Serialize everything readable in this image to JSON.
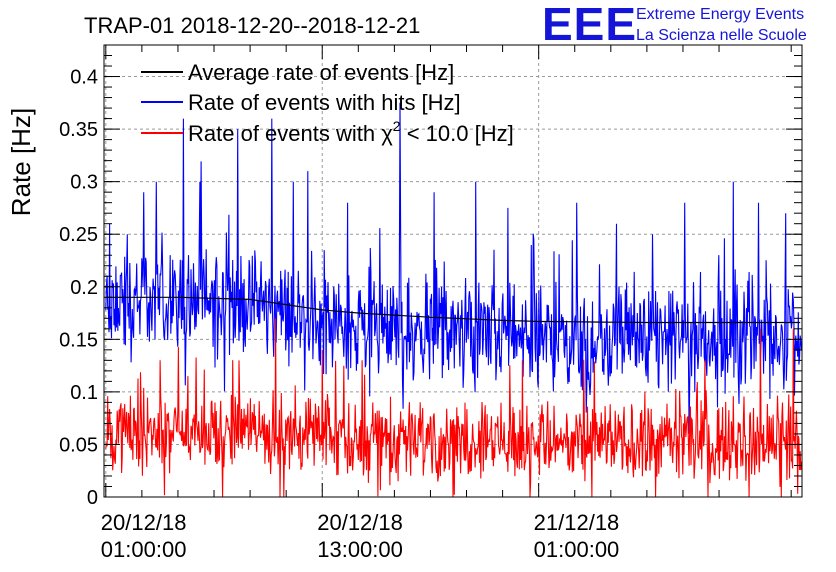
{
  "colors": {
    "average": "#000000",
    "hits": "#0000ff",
    "chi2": "#ff0000"
  },
  "logo": {
    "mark": "EEE",
    "line1": "Extreme Energy Events",
    "line2": "La Scienza nelle Scuole"
  },
  "chart_data": {
    "type": "line",
    "title": "TRAP-01 2018-12-20--2018-12-21",
    "ylabel": "Rate [Hz]",
    "xlabel": "",
    "ylim": [
      0,
      0.43
    ],
    "xlim_hours": [
      -0.1,
      38.6
    ],
    "grid": true,
    "legend_position": "top-left",
    "yticks": [
      0,
      0.05,
      0.1,
      0.15,
      0.2,
      0.25,
      0.3,
      0.35,
      0.4
    ],
    "ytick_labels": [
      "0",
      "0.05",
      "0.1",
      "0.15",
      "0.2",
      "0.25",
      "0.3",
      "0.35",
      "0.4"
    ],
    "xticks": [
      {
        "hours": 0,
        "date": "20/12/18",
        "time": "01:00:00"
      },
      {
        "hours": 12,
        "date": "20/12/18",
        "time": "13:00:00"
      },
      {
        "hours": 24,
        "date": "21/12/18",
        "time": "01:00:00"
      }
    ],
    "legend": [
      {
        "name": "Average rate of events [Hz]"
      },
      {
        "name": "Rate of events with hits [Hz]"
      },
      {
        "name": "Rate of events with χ2 < 10.0 [Hz]",
        "prefix": "Rate of events with ",
        "symbol": "χ",
        "sup": "2",
        "suffix": " < 10.0 [Hz]"
      }
    ],
    "series": [
      {
        "name": "Average rate of events [Hz]",
        "x_hours": [
          0,
          4,
          8,
          10,
          12,
          14,
          18,
          22,
          24,
          30,
          34,
          38.6
        ],
        "values": [
          0.19,
          0.19,
          0.188,
          0.183,
          0.178,
          0.175,
          0.171,
          0.168,
          0.167,
          0.166,
          0.166,
          0.166
        ]
      },
      {
        "name": "Rate of events with hits [Hz]",
        "x_hours": [
          0,
          1.5,
          3,
          5,
          7,
          9,
          11,
          13,
          15,
          17,
          19,
          21,
          23,
          25,
          27,
          29,
          31,
          33,
          35,
          37,
          38.6
        ],
        "values": [
          0.18,
          0.185,
          0.19,
          0.19,
          0.185,
          0.18,
          0.17,
          0.163,
          0.16,
          0.158,
          0.157,
          0.156,
          0.155,
          0.152,
          0.15,
          0.15,
          0.15,
          0.15,
          0.152,
          0.155,
          0.16
        ],
        "spread": 0.03,
        "peaks": [
          {
            "hour": 0.2,
            "value": 0.26
          },
          {
            "hour": 1.2,
            "value": 0.25
          },
          {
            "hour": 2.8,
            "value": 0.3
          },
          {
            "hour": 4.3,
            "value": 0.36
          },
          {
            "hour": 5.2,
            "value": 0.3
          },
          {
            "hour": 7.3,
            "value": 0.35
          },
          {
            "hour": 9.2,
            "value": 0.36
          },
          {
            "hour": 10.4,
            "value": 0.3
          },
          {
            "hour": 11.2,
            "value": 0.31
          },
          {
            "hour": 13.4,
            "value": 0.28
          },
          {
            "hour": 16.3,
            "value": 0.375
          },
          {
            "hour": 18.2,
            "value": 0.29
          },
          {
            "hour": 20.5,
            "value": 0.3
          },
          {
            "hour": 22.3,
            "value": 0.275
          },
          {
            "hour": 26.1,
            "value": 0.28
          },
          {
            "hour": 28.3,
            "value": 0.26
          },
          {
            "hour": 30.3,
            "value": 0.25
          },
          {
            "hour": 32.1,
            "value": 0.28
          },
          {
            "hour": 34.8,
            "value": 0.3
          },
          {
            "hour": 36.2,
            "value": 0.28
          },
          {
            "hour": 37.7,
            "value": 0.27
          }
        ]
      },
      {
        "name": "Rate of events with χ2 < 10.0 [Hz]",
        "x_hours": [
          0,
          4,
          8,
          12,
          16,
          20,
          24,
          28,
          32,
          36,
          38.6
        ],
        "values": [
          0.06,
          0.062,
          0.062,
          0.058,
          0.056,
          0.055,
          0.054,
          0.053,
          0.052,
          0.052,
          0.053
        ],
        "spread": 0.022,
        "peaks": [
          {
            "hour": 3.0,
            "value": 0.13
          },
          {
            "hour": 9.4,
            "value": 0.17
          },
          {
            "hour": 12.0,
            "value": 0.14
          },
          {
            "hour": 14.2,
            "value": 0.13
          },
          {
            "hour": 23.1,
            "value": 0.13
          },
          {
            "hour": 33.2,
            "value": 0.13
          },
          {
            "hour": 36.3,
            "value": 0.16
          },
          {
            "hour": 38.1,
            "value": 0.16
          }
        ]
      }
    ]
  }
}
